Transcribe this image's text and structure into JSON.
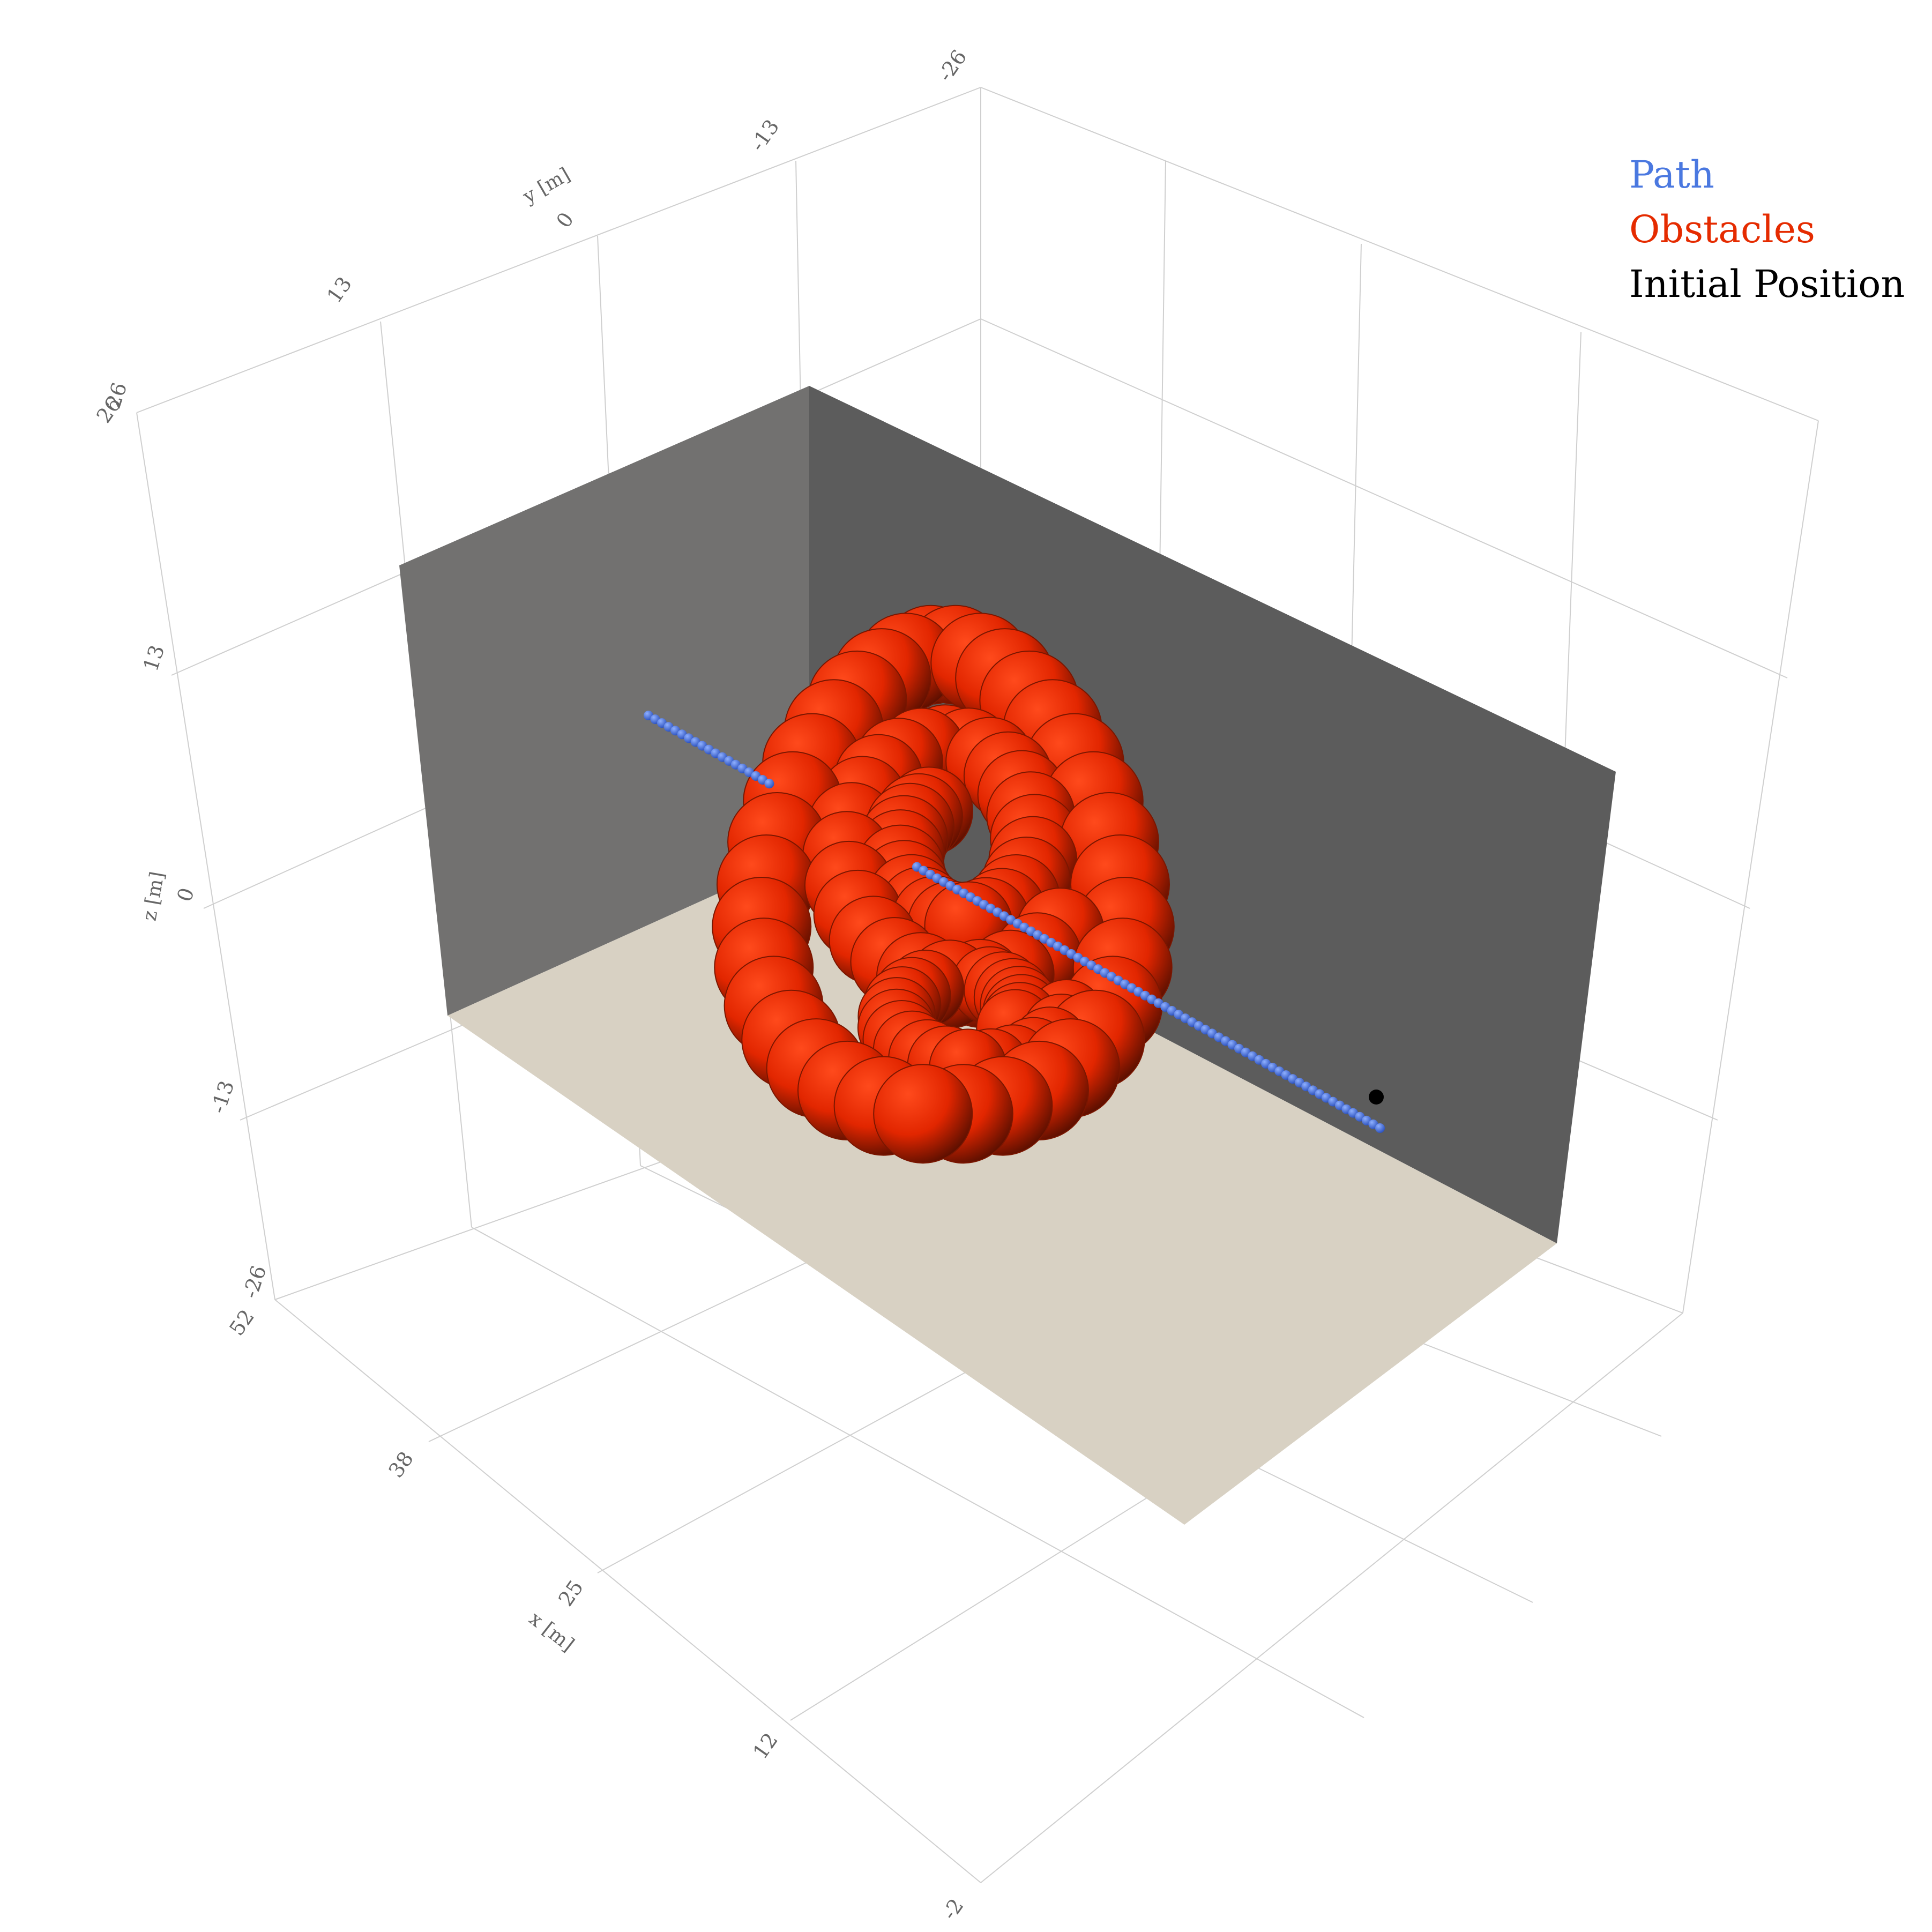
{
  "chart_data": {
    "type": "scatter3d",
    "axes": {
      "x": {
        "label": "x [m]",
        "ticks": [
          "-2",
          "12",
          "25",
          "38",
          "52"
        ],
        "range": [
          -2,
          52
        ]
      },
      "y": {
        "label": "y [m]",
        "ticks": [
          "26",
          "13",
          "0",
          "-13",
          "-26"
        ],
        "range": [
          26,
          -26
        ]
      },
      "z": {
        "label": "z [m]",
        "ticks": [
          "-26",
          "-13",
          "0",
          "13",
          "26"
        ],
        "range": [
          -26,
          26
        ]
      },
      "grid": true
    },
    "legend": {
      "position": "top-right",
      "entries": [
        {
          "name": "Path",
          "color": "#4a78e0"
        },
        {
          "name": "Obstacles",
          "color": "#e52b00"
        },
        {
          "name": "Initial Position",
          "color": "#000000"
        }
      ]
    },
    "series": [
      {
        "name": "Path",
        "kind": "points",
        "color": "#3a62d8",
        "start": [
          42,
          22,
          0
        ],
        "end": [
          10,
          -20,
          0
        ],
        "count": 110
      },
      {
        "name": "Obstacles",
        "kind": "spheres",
        "color": "#e52b00",
        "shape": "coiled spiral of spheres",
        "center": [
          26,
          2,
          2
        ]
      },
      {
        "name": "Initial Position",
        "kind": "point",
        "color": "#000000",
        "x": 10,
        "y": -20,
        "z": 0
      }
    ],
    "walls": {
      "back_wall": "#5c5c5c",
      "side_wall": "#707070",
      "floor": "#d8d1c3"
    }
  }
}
